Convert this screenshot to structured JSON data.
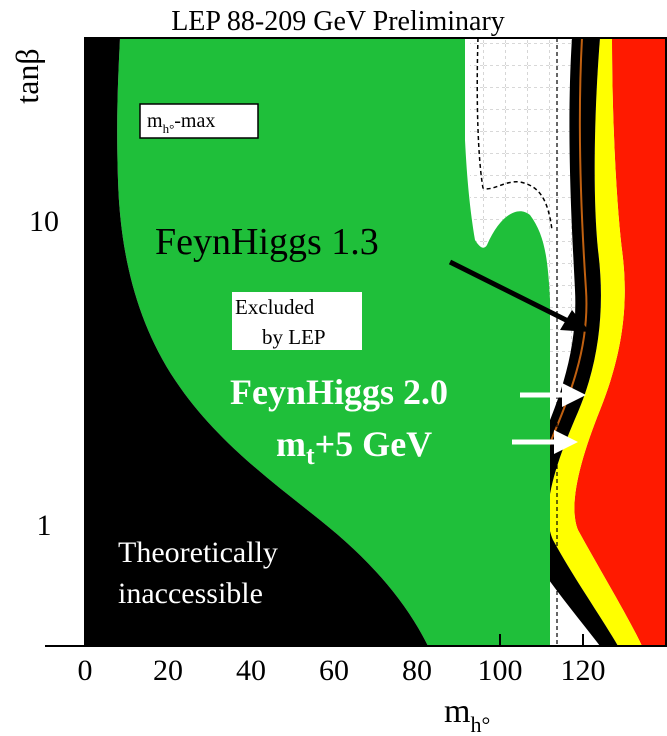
{
  "chart_data": {
    "type": "area",
    "title": "LEP 88-209 GeV Preliminary",
    "xlabel_main": "m",
    "xlabel_sub": "h°",
    "ylabel": "tanβ",
    "x_ticks": [
      "0",
      "20",
      "40",
      "60",
      "80",
      "100",
      "120"
    ],
    "x_tick_values": [
      0,
      20,
      40,
      60,
      80,
      100,
      120
    ],
    "y_ticks": [
      "1",
      "10"
    ],
    "y_tick_values": [
      1,
      10
    ],
    "xlim": [
      0,
      140
    ],
    "ylim": [
      0.4,
      40
    ],
    "y_scale": "log",
    "grid": "partial dashed grid in upper-right white region",
    "regions": [
      {
        "label": "Theoretically inaccessible",
        "color": "#000000"
      },
      {
        "label": "Excluded by LEP",
        "color": "#1fbf3a"
      }
    ],
    "boundary_curves": [
      {
        "label": "FeynHiggs 1.3",
        "color": "#000000"
      },
      {
        "label": "FeynHiggs 2.0",
        "color": "#ffff00"
      },
      {
        "label": "m t +5 GeV",
        "color": "#ff0000"
      }
    ],
    "scenario_box": {
      "main": "m",
      "sub": "h°",
      "suffix": "-max"
    },
    "annotations": {
      "feynhiggs13": "FeynHiggs 1.3",
      "excluded_line1": "Excluded",
      "excluded_line2": "by LEP",
      "feynhiggs20": "FeynHiggs 2.0",
      "mt_main": "m",
      "mt_sub": "t",
      "mt_suffix": "+5 GeV",
      "theo_line1": "Theoretically",
      "theo_line2": "inaccessible"
    }
  }
}
